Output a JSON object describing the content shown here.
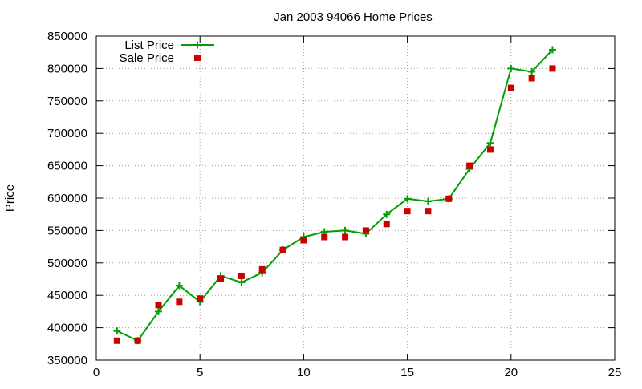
{
  "chart_data": {
    "type": "line",
    "title": "Jan 2003 94066 Home Prices",
    "xlabel": "",
    "ylabel": "Price",
    "xlim": [
      0,
      25
    ],
    "ylim": [
      350000,
      850000
    ],
    "xticks": [
      0,
      5,
      10,
      15,
      20,
      25
    ],
    "yticks": [
      350000,
      400000,
      450000,
      500000,
      550000,
      600000,
      650000,
      700000,
      750000,
      800000,
      850000
    ],
    "grid": true,
    "legend_position": "top-left",
    "series": [
      {
        "name": "List Price",
        "style": "line+cross",
        "color": "#00a000",
        "points": [
          [
            1,
            395000
          ],
          [
            2,
            380000
          ],
          [
            3,
            425000
          ],
          [
            4,
            465000
          ],
          [
            5,
            440000
          ],
          [
            6,
            480000
          ],
          [
            7,
            470000
          ],
          [
            8,
            485000
          ],
          [
            9,
            520000
          ],
          [
            10,
            540000
          ],
          [
            11,
            548000
          ],
          [
            12,
            550000
          ],
          [
            13,
            545000
          ],
          [
            14,
            575000
          ],
          [
            15,
            599000
          ],
          [
            16,
            595000
          ],
          [
            17,
            599000
          ],
          [
            18,
            645000
          ],
          [
            19,
            685000
          ],
          [
            20,
            800000
          ],
          [
            21,
            795000
          ],
          [
            22,
            829000
          ]
        ]
      },
      {
        "name": "Sale Price",
        "style": "square",
        "color": "#cc0000",
        "points": [
          [
            1,
            380000
          ],
          [
            2,
            380000
          ],
          [
            3,
            435000
          ],
          [
            4,
            440000
          ],
          [
            5,
            445000
          ],
          [
            6,
            475000
          ],
          [
            7,
            480000
          ],
          [
            8,
            490000
          ],
          [
            9,
            520000
          ],
          [
            10,
            535000
          ],
          [
            11,
            540000
          ],
          [
            12,
            540000
          ],
          [
            13,
            550000
          ],
          [
            14,
            560000
          ],
          [
            15,
            580000
          ],
          [
            16,
            580000
          ],
          [
            17,
            599000
          ],
          [
            18,
            650000
          ],
          [
            19,
            675000
          ],
          [
            20,
            770000
          ],
          [
            21,
            785000
          ],
          [
            22,
            800000
          ]
        ]
      }
    ]
  }
}
